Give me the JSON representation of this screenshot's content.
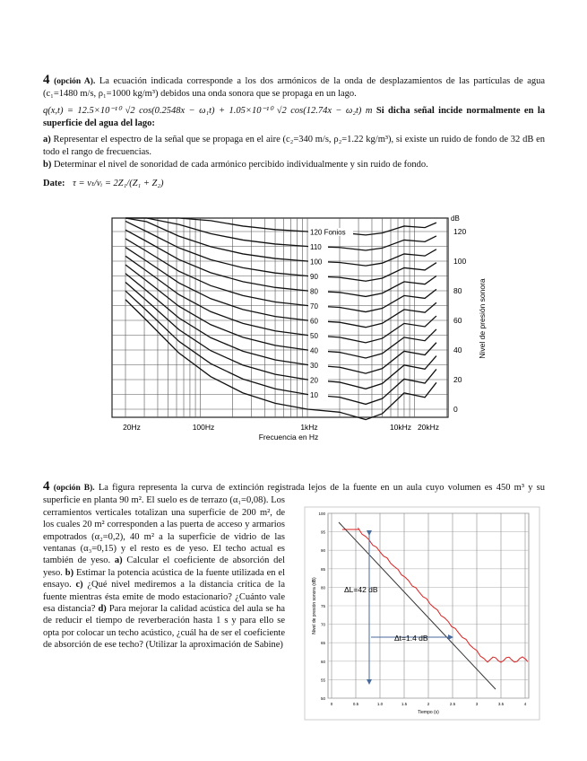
{
  "problem_a": {
    "number": "4",
    "option": "(opción A).",
    "intro": "La ecuación indicada corresponde a los dos armónicos de la onda de desplazamientos de las partículas de agua (c₁=1480 m/s, ρ₁=1000 kg/m³) debidos una onda sonora que se propaga en un lago.",
    "equation": "q(x,t) = 12.5×10⁻¹⁰ √2 cos(0.2548x − ω₁t) + 1.05×10⁻¹⁰ √2 cos(12.74x − ω₂t)",
    "equation_unit": "m",
    "equation_tail": "Si dicha señal incide normalmente en la superficie del agua del lago:",
    "items": [
      {
        "label": "a)",
        "text": "Representar el espectro de la señal que se propaga en el aire (c₂=340 m/s, ρ₂=1.22 kg/m³), si existe un ruido de fondo de 32 dB en todo el rango de frecuencias."
      },
      {
        "label": "b)",
        "text": "Determinar el nivel de sonoridad de cada armónico percibido individualmente y sin ruido de fondo."
      }
    ],
    "data_label": "Date:",
    "formula": "τ = vₜ/vᵢ = 2Z₁/(Z₁ + Z₂)"
  },
  "figure_1": {
    "y_unit": "dB",
    "y_title": "Nivel de presión sonora",
    "yticks": [
      "120",
      "100",
      "80",
      "60",
      "40",
      "20",
      "0"
    ],
    "x_title": "Frecuencia en Hz",
    "xticks": [
      "20Hz",
      "100Hz",
      "1kHz",
      "10kHz",
      "20kHz"
    ],
    "curve_labels": [
      "120 Fonios",
      "110",
      "100",
      "90",
      "80",
      "70",
      "60",
      "50",
      "40",
      "30",
      "20",
      "10"
    ]
  },
  "problem_b": {
    "number": "4",
    "option": "(opción B).",
    "intro": "La figura representa la curva de extinción registrada lejos de la fuente en un aula cuyo volumen es 450 m³ y su superficie en planta 90 m². El suelo es de terrazo (α₁=0,08). Los cerramientos verticales totalizan una superficie de 200 m², de los cuales 20 m² corresponden a las puerta de acceso y armarios empotrados (α₂=0,2), 40 m² a la superficie de vidrio de las ventanas (α₃=0,15) y el resto es de yeso. El techo actual es también de yeso.",
    "items": [
      {
        "label": "a)",
        "text": "Calcular el coeficiente de absorción del yeso."
      },
      {
        "label": "b)",
        "text": "Estimar la potencia acústica de la fuente utilizada en el ensayo."
      },
      {
        "label": "c)",
        "text": "¿Qué nivel mediremos a la distancia crítica de la fuente mientras ésta emite de modo estacionario? ¿Cuánto vale esa distancia?"
      },
      {
        "label": "d)",
        "text": "Para mejorar la calidad acústica del aula se ha de reducir el tiempo de reverberación hasta 1 s y para ello se opta por colocar un techo acústico, ¿cuál ha de ser el coeficiente de absorción de ese techo? (Utilizar la aproximación de Sabine)"
      }
    ]
  },
  "figure_2": {
    "y_title": "Nivel de presión sonora (dB)",
    "x_title": "Tiempo (s)",
    "yticks": [
      "100",
      "95",
      "90",
      "85",
      "80",
      "75",
      "70",
      "65",
      "60",
      "55",
      "50"
    ],
    "xticks": [
      "0",
      "0.5",
      "1.0",
      "1.5",
      "2",
      "2.5",
      "3",
      "3.5",
      "4"
    ],
    "delta_l": "ΔL=42 dB",
    "delta_t": "Δt=1.4 dB"
  }
}
